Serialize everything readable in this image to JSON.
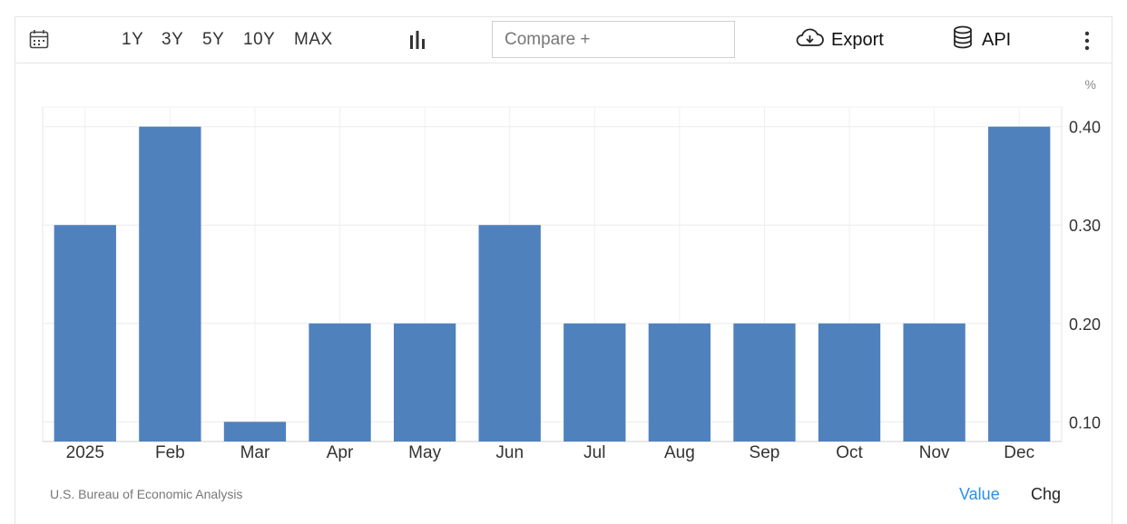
{
  "toolbar": {
    "calendar_icon": "calendar-icon",
    "ranges": [
      "1Y",
      "3Y",
      "5Y",
      "10Y",
      "MAX"
    ],
    "chart_type_icon": "bar-chart-icon",
    "compare_placeholder": "Compare +",
    "export_label": "Export",
    "export_icon": "cloud-download-icon",
    "api_label": "API",
    "api_icon": "database-icon",
    "more_icon": "vertical-dots-icon"
  },
  "footer": {
    "source": "U.S. Bureau of Economic Analysis",
    "value_tab": "Value",
    "chg_tab": "Chg"
  },
  "colors": {
    "bar": "#4f81bd",
    "active_tab": "#2b8fe8"
  },
  "chart_data": {
    "type": "bar",
    "categories": [
      "2025",
      "Feb",
      "Mar",
      "Apr",
      "May",
      "Jun",
      "Jul",
      "Aug",
      "Sep",
      "Oct",
      "Nov",
      "Dec"
    ],
    "values": [
      0.3,
      0.4,
      0.1,
      0.2,
      0.2,
      0.3,
      0.2,
      0.2,
      0.2,
      0.2,
      0.2,
      0.4
    ],
    "unit": "%",
    "yticks": [
      "0.10",
      "0.20",
      "0.30",
      "0.40"
    ],
    "ylim": [
      0.08,
      0.42
    ],
    "y_axis_side": "right",
    "grid": true,
    "legend": "none"
  }
}
